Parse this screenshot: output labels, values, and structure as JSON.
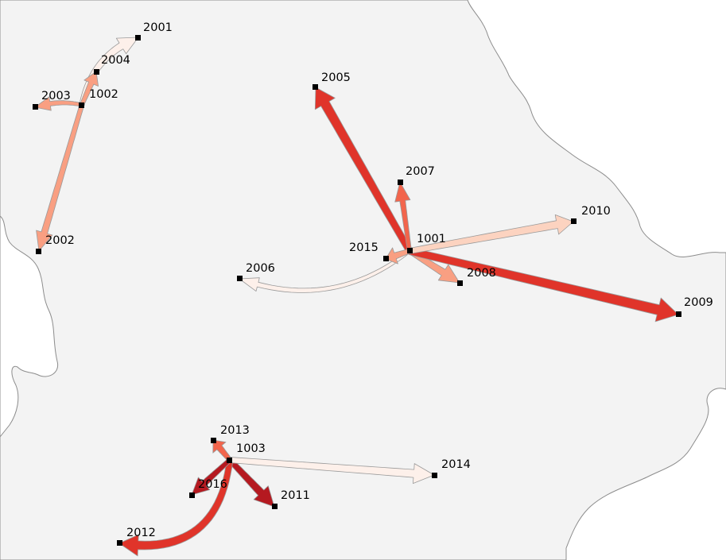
{
  "map": {
    "land_color": "#f3f3f3",
    "outside_color": "#ffffff",
    "border_color": "#8c8c8c",
    "node_color": "#000000",
    "color_scale": [
      "#fdf0ea",
      "#fcd3c0",
      "#f99f82",
      "#f2654c",
      "#e0342a",
      "#b51920"
    ]
  },
  "hubs": [
    {
      "id": "hub-1001",
      "label": "1001"
    },
    {
      "id": "hub-1002",
      "label": "1002"
    },
    {
      "id": "hub-1003",
      "label": "1003"
    }
  ],
  "destinations": [
    {
      "id": "2001",
      "label": "2001",
      "hub": "1002"
    },
    {
      "id": "2002",
      "label": "2002",
      "hub": "1002"
    },
    {
      "id": "2003",
      "label": "2003",
      "hub": "1002"
    },
    {
      "id": "2004",
      "label": "2004",
      "hub": "1002"
    },
    {
      "id": "2005",
      "label": "2005",
      "hub": "1001"
    },
    {
      "id": "2006",
      "label": "2006",
      "hub": "1001"
    },
    {
      "id": "2007",
      "label": "2007",
      "hub": "1001"
    },
    {
      "id": "2008",
      "label": "2008",
      "hub": "1001"
    },
    {
      "id": "2009",
      "label": "2009",
      "hub": "1001"
    },
    {
      "id": "2010",
      "label": "2010",
      "hub": "1001"
    },
    {
      "id": "2015",
      "label": "2015",
      "hub": "1001"
    },
    {
      "id": "2011",
      "label": "2011",
      "hub": "1003"
    },
    {
      "id": "2012",
      "label": "2012",
      "hub": "1003"
    },
    {
      "id": "2013",
      "label": "2013",
      "hub": "1003"
    },
    {
      "id": "2014",
      "label": "2014",
      "hub": "1003"
    },
    {
      "id": "2016",
      "label": "2016",
      "hub": "1003"
    }
  ]
}
